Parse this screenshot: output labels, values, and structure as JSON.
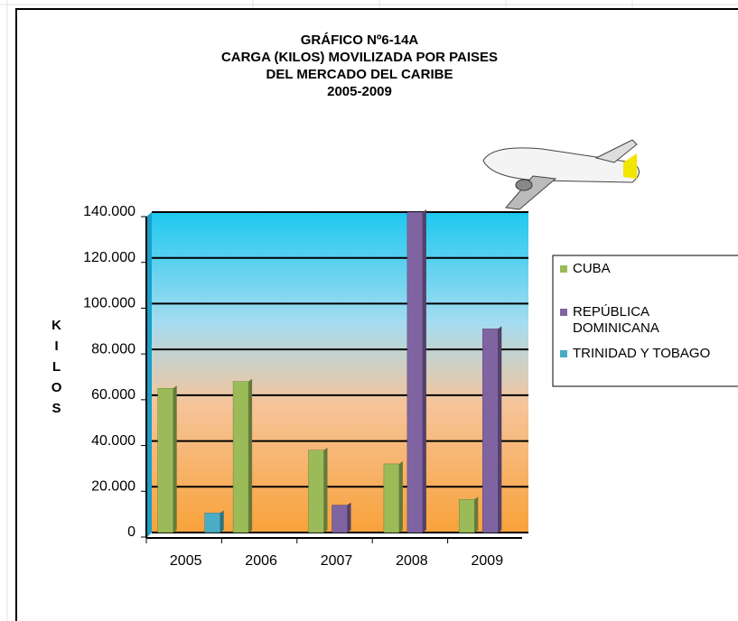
{
  "chart_data": {
    "type": "bar",
    "title": [
      "GRÁFICO Nº6-14A",
      "CARGA (KILOS) MOVILIZADA POR PAISES",
      "DEL MERCADO DEL CARIBE",
      "2005-2009"
    ],
    "y_label": "KILOS",
    "categories": [
      "2005",
      "2006",
      "2007",
      "2008",
      "2009"
    ],
    "series": [
      {
        "name": "CUBA",
        "color": "#9bbb59",
        "values": [
          63000,
          66000,
          36000,
          30000,
          14500
        ]
      },
      {
        "name": "REPÚBLICA DOMINICANA",
        "color": "#8064a2",
        "values": [
          0,
          0,
          12000,
          140000,
          89000
        ]
      },
      {
        "name": "TRINIDAD Y TOBAGO",
        "color": "#4bacc6",
        "values": [
          8500,
          0,
          0,
          0,
          0
        ]
      }
    ],
    "ylim": [
      0,
      140000
    ],
    "yticks": [
      0,
      {
        "value": 20000,
        "label": "20.000"
      },
      {
        "value": 40000,
        "label": "40.000"
      },
      {
        "value": 60000,
        "label": "60.000"
      },
      {
        "value": 80000,
        "label": "80.000"
      },
      {
        "value": 100000,
        "label": "100.000"
      },
      {
        "value": 120000,
        "label": "120.000"
      },
      {
        "value": 140000,
        "label": "140.000"
      }
    ],
    "grid": true
  }
}
